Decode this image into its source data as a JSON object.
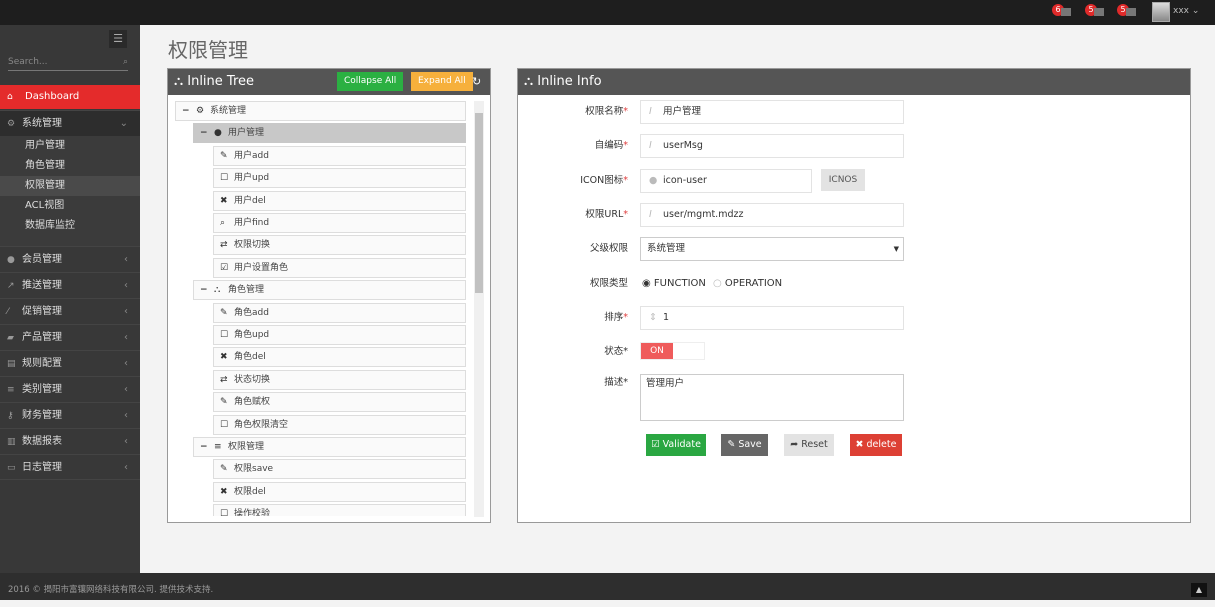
{
  "topbar": {
    "notifications": [
      {
        "count": "6",
        "icon": "bell-icon"
      },
      {
        "count": "5",
        "icon": "envelope-icon"
      },
      {
        "count": "5",
        "icon": "tasks-icon"
      }
    ],
    "user": "xxx"
  },
  "sidebar": {
    "search_placeholder": "Search...",
    "items": [
      {
        "label": "Dashboard",
        "icon": "home-icon",
        "active": true
      },
      {
        "label": "系统管理",
        "icon": "cogs-icon",
        "open": true,
        "children": [
          "用户管理",
          "角色管理",
          "权限管理",
          "ACL视图",
          "数据库监控"
        ],
        "selected_child": "权限管理"
      },
      {
        "label": "会员管理",
        "icon": "user-icon"
      },
      {
        "label": "推送管理",
        "icon": "share-icon"
      },
      {
        "label": "促销管理",
        "icon": "magic-icon"
      },
      {
        "label": "产品管理",
        "icon": "book-icon"
      },
      {
        "label": "规则配置",
        "icon": "table-icon"
      },
      {
        "label": "类别管理",
        "icon": "list-icon"
      },
      {
        "label": "财务管理",
        "icon": "key-icon"
      },
      {
        "label": "数据报表",
        "icon": "chart-icon"
      },
      {
        "label": "日志管理",
        "icon": "credit-card-icon"
      }
    ]
  },
  "page": {
    "title": "权限管理"
  },
  "tree": {
    "title": "Inline Tree",
    "collapse_all": "Collapse All",
    "expand_all": "Expand All",
    "colors": {
      "collapse": "#2bb042",
      "expand": "#f6b03c"
    },
    "nodes": [
      {
        "label": "系统管理",
        "level": 0,
        "icon": "cogs-icon",
        "toggle": "−"
      },
      {
        "label": "用户管理",
        "level": 1,
        "icon": "user-icon",
        "toggle": "−",
        "selected": true
      },
      {
        "label": "用户add",
        "level": 2,
        "icon": "pencil-icon"
      },
      {
        "label": "用户upd",
        "level": 2,
        "icon": "edit-icon"
      },
      {
        "label": "用户del",
        "level": 2,
        "icon": "remove-icon"
      },
      {
        "label": "用户find",
        "level": 2,
        "icon": "search-icon"
      },
      {
        "label": "权限切换",
        "level": 2,
        "icon": "retweet-icon"
      },
      {
        "label": "用户设置角色",
        "level": 2,
        "icon": "check-icon"
      },
      {
        "label": "角色管理",
        "level": 1,
        "icon": "sitemap-icon",
        "toggle": "−"
      },
      {
        "label": "角色add",
        "level": 2,
        "icon": "pencil-icon"
      },
      {
        "label": "角色upd",
        "level": 2,
        "icon": "edit-icon"
      },
      {
        "label": "角色del",
        "level": 2,
        "icon": "remove-icon"
      },
      {
        "label": "状态切换",
        "level": 2,
        "icon": "retweet-icon"
      },
      {
        "label": "角色赋权",
        "level": 2,
        "icon": "pencil-icon"
      },
      {
        "label": "角色权限清空",
        "level": 2,
        "icon": "checkbox-empty-icon"
      },
      {
        "label": "权限管理",
        "level": 1,
        "icon": "list-icon",
        "toggle": "−"
      },
      {
        "label": "权限save",
        "level": 2,
        "icon": "pencil-icon"
      },
      {
        "label": "权限del",
        "level": 2,
        "icon": "remove-icon"
      },
      {
        "label": "操作校验",
        "level": 2,
        "icon": "edit-icon"
      }
    ]
  },
  "info": {
    "title": "Inline Info",
    "fields": {
      "name": {
        "label": "权限名称",
        "value": "用户管理"
      },
      "code": {
        "label": "自编码",
        "value": "userMsg"
      },
      "icon": {
        "label": "ICON图标",
        "value": "icon-user",
        "button": "ICNOS"
      },
      "url": {
        "label": "权限URL",
        "value": "user/mgmt.mdzz"
      },
      "parent": {
        "label": "父级权限",
        "value": "系统管理"
      },
      "type": {
        "label": "权限类型",
        "options": [
          "FUNCTION",
          "OPERATION"
        ],
        "selected": "FUNCTION"
      },
      "order": {
        "label": "排序",
        "value": "1"
      },
      "status": {
        "label": "状态",
        "value": "ON"
      },
      "desc": {
        "label": "描述",
        "value": "管理用户"
      }
    },
    "buttons": {
      "validate": "Validate",
      "save": "Save",
      "reset": "Reset",
      "delete": "delete"
    }
  },
  "footer": {
    "text": "2016 © 揭阳市富镶网络科技有限公司. 提供技术支持."
  }
}
